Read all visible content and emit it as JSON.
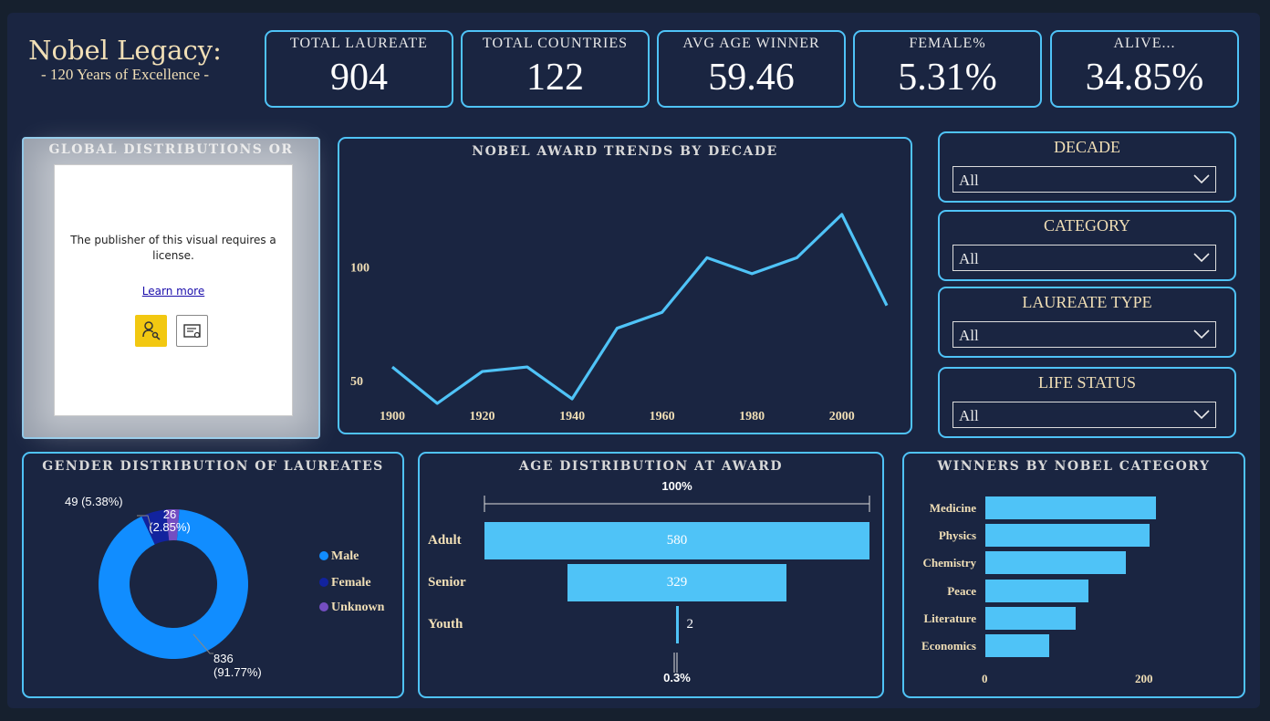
{
  "header": {
    "title": "Nobel Legacy:",
    "subtitle": "- 120 Years of Excellence -"
  },
  "kpis": [
    {
      "label": "TOTAL LAUREATE",
      "value": "904"
    },
    {
      "label": "TOTAL COUNTRIES",
      "value": "122"
    },
    {
      "label": "AVG AGE WINNER",
      "value": "59.46"
    },
    {
      "label": "FEMALE%",
      "value": "5.31%"
    },
    {
      "label": "ALIVE...",
      "value": "34.85%"
    }
  ],
  "global_panel": {
    "title": "GLOBAL DISTRIBUTIONS OR",
    "message": "The publisher of this visual requires a license.",
    "link": "Learn more"
  },
  "trend_chart": {
    "title": "NOBEL AWARD TRENDS BY DECADE"
  },
  "slicers": [
    {
      "title": "DECADE",
      "value": "All"
    },
    {
      "title": "CATEGORY",
      "value": "All"
    },
    {
      "title": "LAUREATE TYPE",
      "value": "All"
    },
    {
      "title": "LIFE STATUS",
      "value": "All"
    }
  ],
  "gender": {
    "title": "GENDER DISTRIBUTION OF LAUREATES",
    "legend": [
      "Male",
      "Female",
      "Unknown"
    ],
    "label_male": "836",
    "label_male_pct": "(91.77%)",
    "label_female": "49 (5.38%)",
    "label_unknown": "26",
    "label_unknown_pct": "(2.85%)"
  },
  "age": {
    "title": "AGE DISTRIBUTION AT AWARD",
    "top_pct": "100%",
    "bottom_pct": "0.3%",
    "rows": [
      {
        "label": "Adult",
        "value": "580"
      },
      {
        "label": "Senior",
        "value": "329"
      },
      {
        "label": "Youth",
        "value": "2"
      }
    ]
  },
  "category": {
    "title": "WINNERS BY NOBEL CATEGORY",
    "ticks": [
      "0",
      "200"
    ]
  },
  "colors": {
    "accent": "#4fc3f7",
    "male": "#118dff",
    "female": "#12239e",
    "unknown": "#744ec2",
    "gold": "#f1dfb6"
  },
  "chart_data": [
    {
      "type": "line",
      "title": "NOBEL AWARD TRENDS BY DECADE",
      "x": [
        1900,
        1910,
        1920,
        1930,
        1940,
        1950,
        1960,
        1970,
        1980,
        1990,
        2000,
        2010
      ],
      "values": [
        56,
        40,
        54,
        56,
        42,
        73,
        80,
        104,
        97,
        104,
        123,
        83
      ],
      "xticks": [
        "1900",
        "1920",
        "1940",
        "1960",
        "1980",
        "2000"
      ],
      "yticks": [
        "50",
        "100"
      ],
      "xlim": [
        1900,
        2010
      ],
      "ylim": [
        40,
        125
      ]
    },
    {
      "type": "pie",
      "title": "GENDER DISTRIBUTION OF LAUREATES",
      "categories": [
        "Male",
        "Female",
        "Unknown"
      ],
      "values": [
        836,
        49,
        26
      ]
    },
    {
      "type": "bar",
      "title": "AGE DISTRIBUTION AT AWARD",
      "categories": [
        "Adult",
        "Senior",
        "Youth"
      ],
      "values": [
        580,
        329,
        2
      ]
    },
    {
      "type": "bar",
      "title": "WINNERS BY NOBEL CATEGORY",
      "categories": [
        "Medicine",
        "Physics",
        "Chemistry",
        "Peace",
        "Literature",
        "Economics"
      ],
      "values": [
        212,
        204,
        175,
        128,
        113,
        80
      ],
      "xlim": [
        0,
        230
      ]
    }
  ]
}
